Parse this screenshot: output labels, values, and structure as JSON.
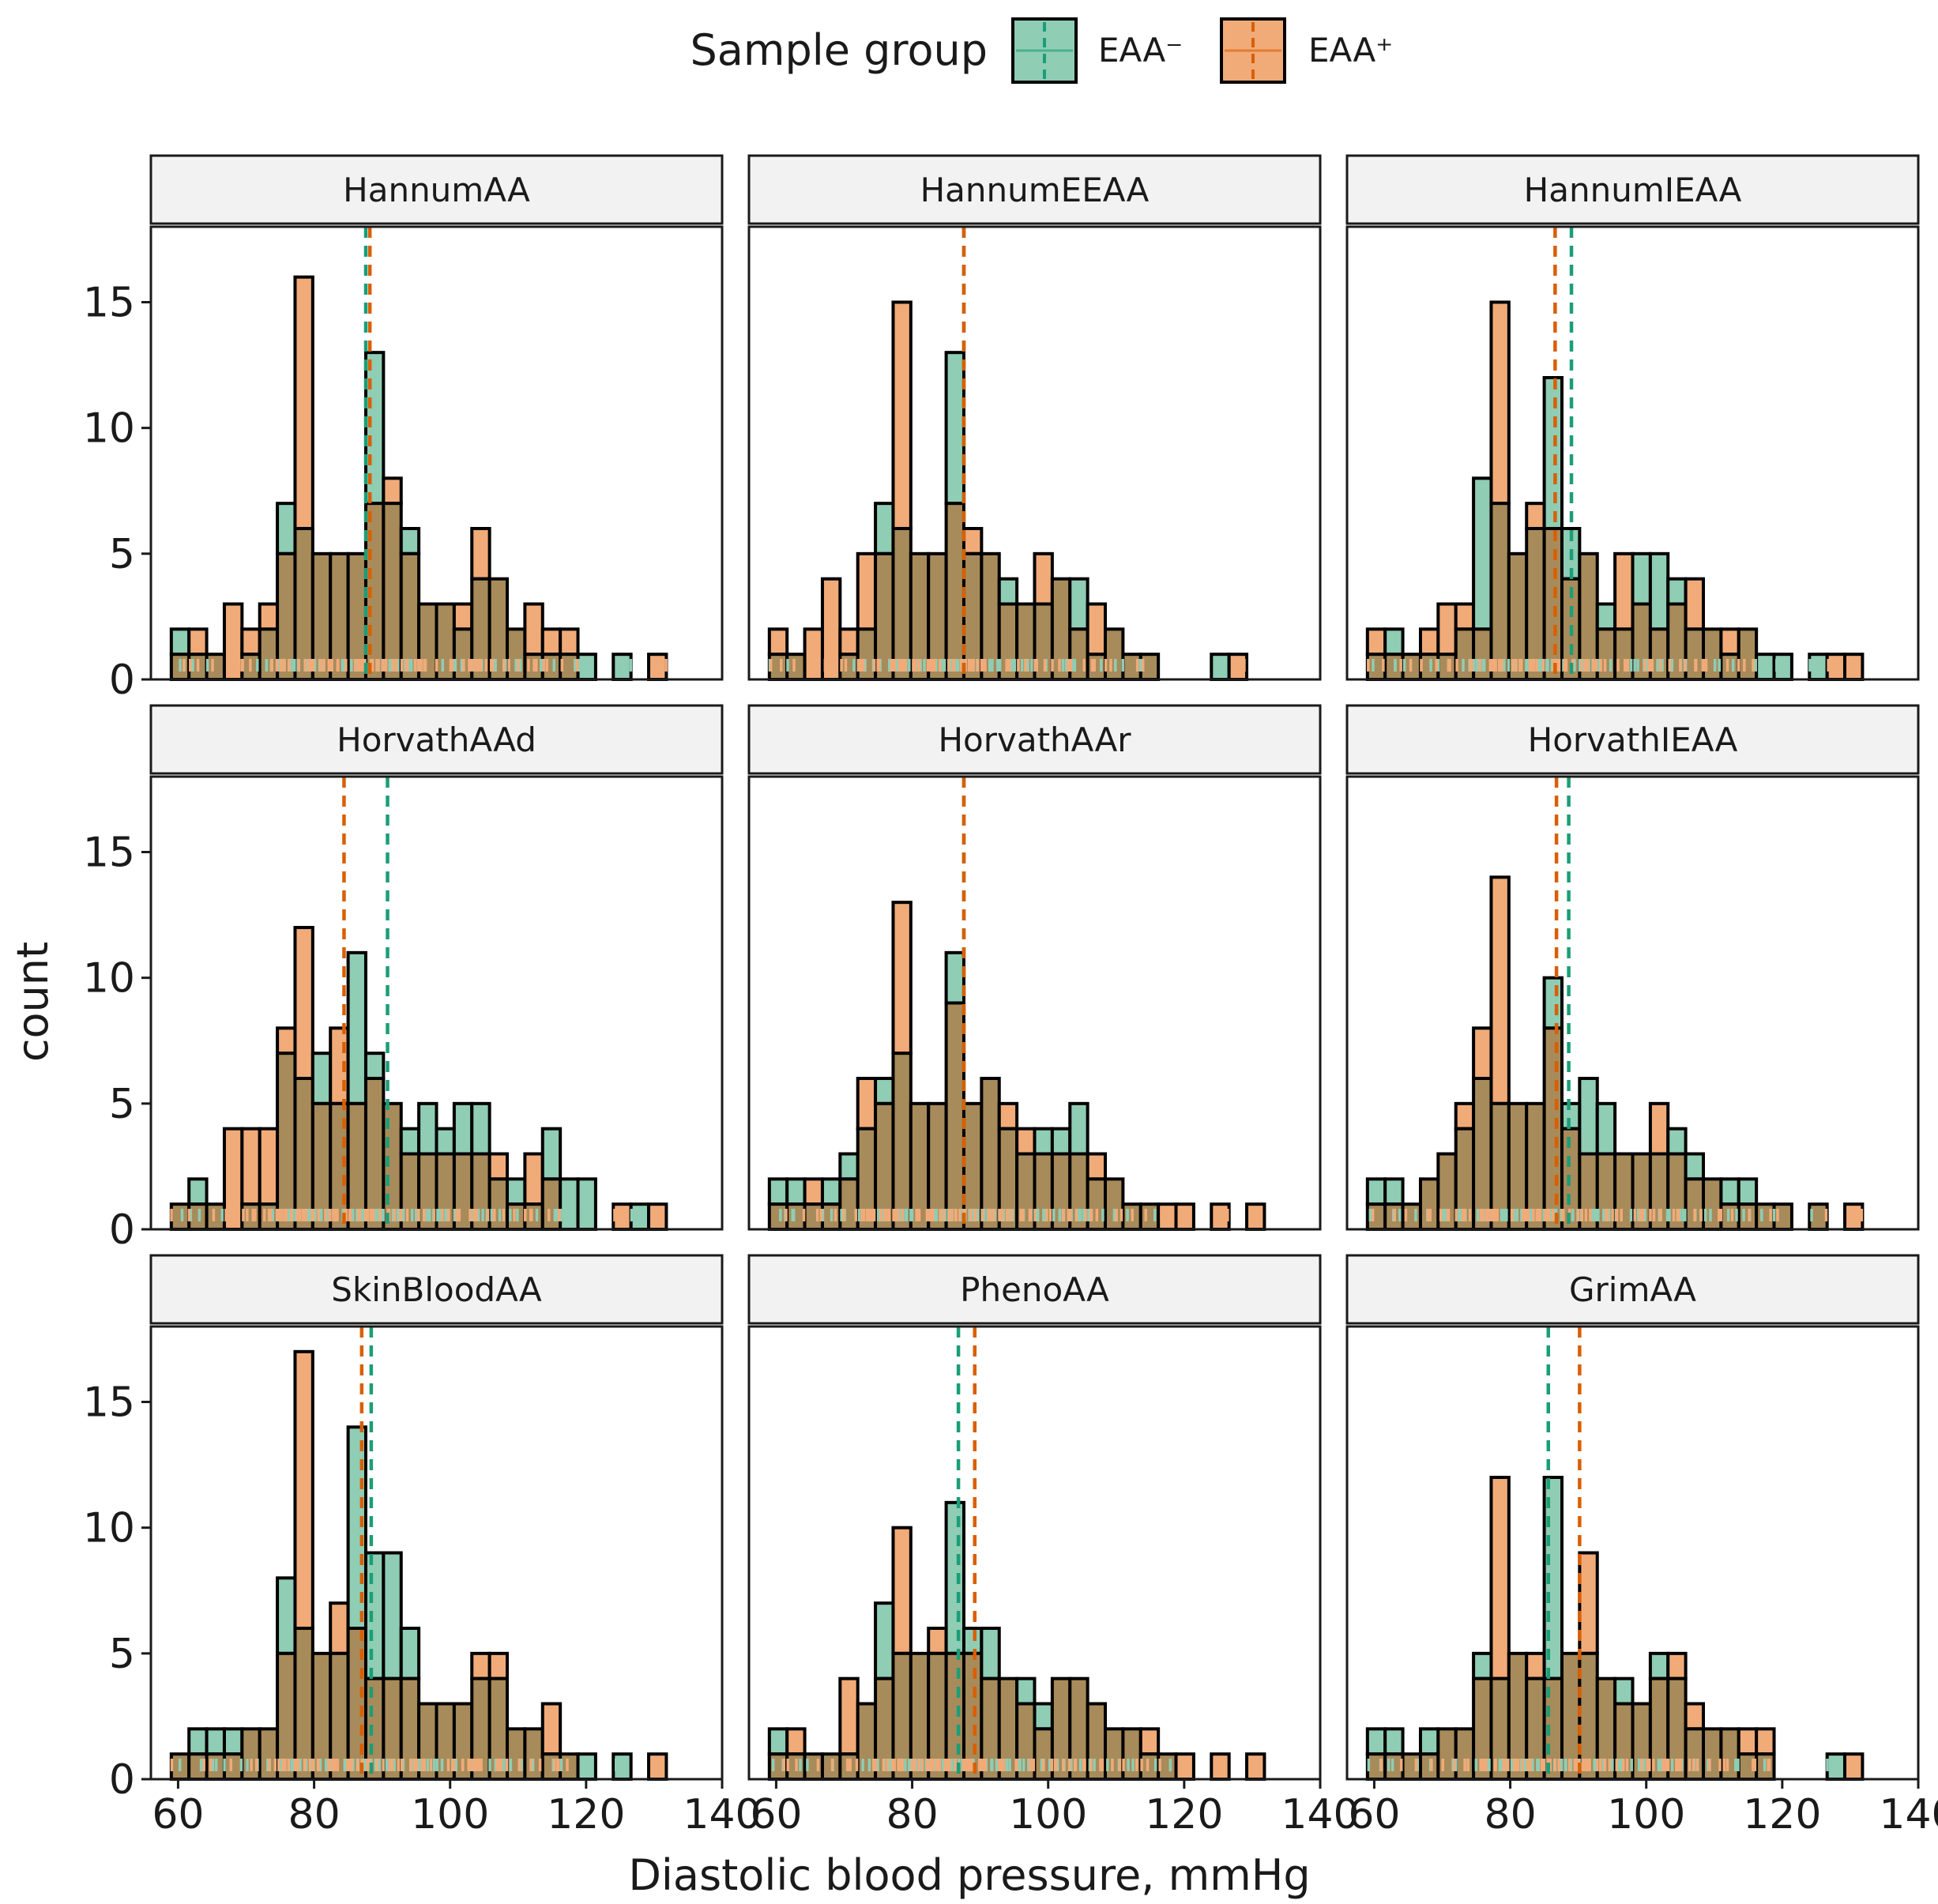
{
  "chart_data": {
    "type": "histogram",
    "legend": {
      "title": "Sample group",
      "position": "top",
      "items": [
        {
          "label": "EAA⁻",
          "color": "#1b9e77"
        },
        {
          "label": "EAA⁺",
          "color": "#d95f02"
        }
      ]
    },
    "xlabel": "Diastolic blood pressure, mmHg",
    "ylabel": "count",
    "xlim": [
      56,
      140
    ],
    "ylim": [
      0,
      18
    ],
    "xticks": [
      60,
      80,
      100,
      120,
      140
    ],
    "yticks": [
      0,
      5,
      10,
      15
    ],
    "bin_start": 59,
    "bin_width": 2.6,
    "grid": false,
    "series_style": {
      "EAA⁻": {
        "fill": "#8fcdb4",
        "rug": "#8fcdb4",
        "mean_line": "#1b9e77"
      },
      "EAA⁺": {
        "fill": "#f0ab79",
        "rug": "#f0ab79",
        "mean_line": "#d95f02"
      },
      "overlap_fill": "#a88b5a"
    },
    "panels": [
      {
        "title": "HannumAA",
        "neg": [
          2,
          1,
          1,
          0,
          1,
          2,
          7,
          6,
          5,
          5,
          5,
          13,
          7,
          6,
          3,
          3,
          2,
          4,
          4,
          2,
          1,
          1,
          1,
          1,
          0,
          1,
          0,
          0
        ],
        "pos": [
          1,
          2,
          1,
          3,
          2,
          3,
          5,
          16,
          5,
          5,
          5,
          7,
          8,
          5,
          3,
          3,
          3,
          6,
          4,
          2,
          3,
          2,
          2,
          0,
          0,
          0,
          0,
          1
        ],
        "mean_neg": 87.6,
        "mean_pos": 88.2
      },
      {
        "title": "HannumEEAA",
        "neg": [
          1,
          1,
          0,
          0,
          1,
          2,
          7,
          6,
          5,
          5,
          13,
          5,
          5,
          4,
          3,
          3,
          4,
          4,
          1,
          2,
          1,
          1,
          0,
          0,
          0,
          1,
          0,
          0
        ],
        "pos": [
          2,
          1,
          2,
          4,
          2,
          5,
          5,
          15,
          5,
          5,
          7,
          6,
          5,
          3,
          3,
          5,
          4,
          2,
          3,
          2,
          1,
          1,
          0,
          0,
          0,
          0,
          1,
          0
        ],
        "mean_neg": 87.6,
        "mean_pos": 87.6
      },
      {
        "title": "HannumIEAA",
        "neg": [
          1,
          2,
          1,
          1,
          1,
          2,
          8,
          7,
          5,
          6,
          12,
          6,
          5,
          3,
          2,
          5,
          5,
          4,
          2,
          2,
          1,
          2,
          1,
          1,
          0,
          1,
          0,
          0
        ],
        "pos": [
          2,
          1,
          1,
          2,
          3,
          3,
          2,
          15,
          5,
          7,
          6,
          4,
          5,
          2,
          5,
          3,
          2,
          3,
          4,
          2,
          2,
          2,
          0,
          0,
          0,
          0,
          1,
          1
        ],
        "mean_neg": 89.0,
        "mean_pos": 86.6
      },
      {
        "title": "HorvathAAd",
        "neg": [
          1,
          2,
          1,
          0,
          1,
          1,
          7,
          6,
          7,
          5,
          11,
          7,
          5,
          4,
          5,
          4,
          5,
          5,
          2,
          2,
          1,
          4,
          2,
          2,
          0,
          0,
          1,
          0
        ],
        "pos": [
          1,
          1,
          1,
          4,
          4,
          4,
          8,
          12,
          5,
          8,
          5,
          6,
          5,
          3,
          3,
          3,
          3,
          3,
          3,
          1,
          3,
          2,
          0,
          0,
          0,
          1,
          0,
          1
        ],
        "mean_neg": 90.8,
        "mean_pos": 84.4
      },
      {
        "title": "HorvathAAr",
        "neg": [
          2,
          2,
          1,
          2,
          3,
          4,
          6,
          7,
          5,
          5,
          11,
          5,
          6,
          4,
          3,
          4,
          4,
          5,
          2,
          2,
          1,
          1,
          0,
          0,
          0,
          0,
          0,
          0
        ],
        "pos": [
          1,
          1,
          2,
          1,
          2,
          6,
          5,
          13,
          5,
          5,
          9,
          5,
          6,
          5,
          4,
          3,
          3,
          3,
          3,
          2,
          1,
          1,
          1,
          1,
          0,
          1,
          0,
          1
        ],
        "mean_neg": 87.6,
        "mean_pos": 87.6
      },
      {
        "title": "HorvathIEAA",
        "neg": [
          2,
          2,
          1,
          2,
          3,
          4,
          6,
          5,
          5,
          5,
          10,
          5,
          6,
          5,
          3,
          3,
          3,
          4,
          3,
          2,
          2,
          2,
          1,
          1,
          0,
          1,
          0,
          0
        ],
        "pos": [
          1,
          1,
          1,
          2,
          3,
          5,
          8,
          14,
          5,
          5,
          8,
          4,
          3,
          3,
          3,
          3,
          5,
          3,
          2,
          2,
          1,
          1,
          1,
          1,
          0,
          1,
          0,
          1
        ],
        "mean_neg": 88.6,
        "mean_pos": 86.8
      },
      {
        "title": "SkinBloodAA",
        "neg": [
          1,
          2,
          2,
          2,
          2,
          2,
          8,
          6,
          5,
          5,
          14,
          9,
          9,
          6,
          3,
          3,
          3,
          4,
          4,
          2,
          2,
          1,
          1,
          1,
          0,
          1,
          0,
          0
        ],
        "pos": [
          1,
          1,
          1,
          1,
          2,
          2,
          5,
          17,
          5,
          7,
          6,
          4,
          4,
          4,
          3,
          3,
          3,
          5,
          5,
          2,
          2,
          3,
          1,
          0,
          0,
          0,
          0,
          1
        ],
        "mean_neg": 88.4,
        "mean_pos": 87.0
      },
      {
        "title": "PhenoAA",
        "neg": [
          2,
          1,
          1,
          1,
          1,
          3,
          7,
          5,
          5,
          5,
          11,
          6,
          6,
          4,
          4,
          3,
          4,
          4,
          3,
          2,
          2,
          1,
          1,
          0,
          0,
          0,
          0,
          0
        ],
        "pos": [
          1,
          2,
          1,
          1,
          4,
          3,
          4,
          10,
          5,
          6,
          5,
          5,
          4,
          4,
          3,
          2,
          4,
          4,
          3,
          2,
          2,
          2,
          1,
          1,
          0,
          1,
          0,
          1
        ],
        "mean_neg": 86.8,
        "mean_pos": 89.2
      },
      {
        "title": "GrimAA",
        "neg": [
          2,
          2,
          1,
          2,
          2,
          2,
          5,
          4,
          5,
          4,
          12,
          5,
          5,
          4,
          4,
          3,
          5,
          4,
          2,
          2,
          2,
          1,
          1,
          0,
          0,
          0,
          1,
          0
        ],
        "pos": [
          1,
          1,
          1,
          1,
          2,
          2,
          4,
          12,
          5,
          5,
          4,
          5,
          9,
          4,
          3,
          3,
          4,
          5,
          3,
          2,
          2,
          2,
          2,
          0,
          0,
          0,
          0,
          1
        ],
        "mean_neg": 85.6,
        "mean_pos": 90.2
      }
    ]
  }
}
